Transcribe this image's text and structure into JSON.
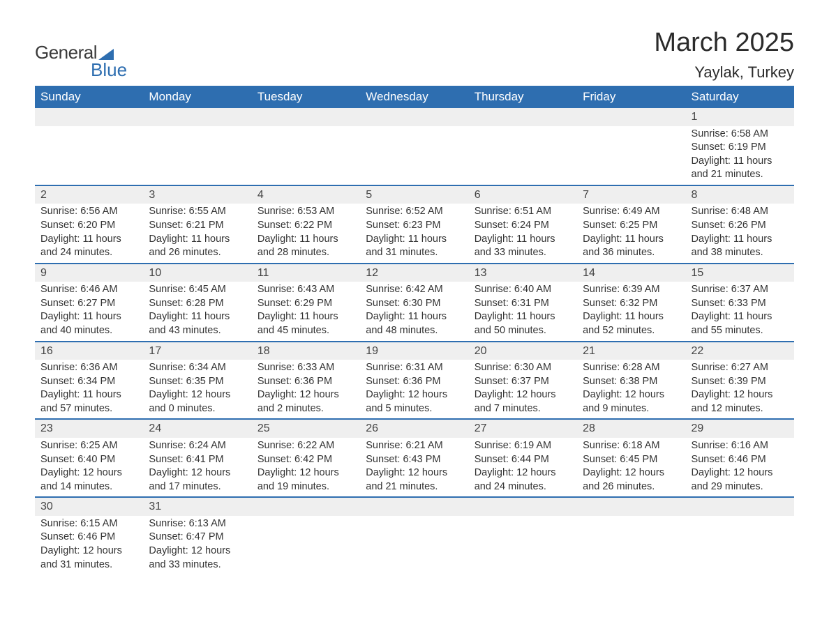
{
  "logo": {
    "text1": "General",
    "text2": "Blue"
  },
  "title": {
    "month": "March 2025",
    "location": "Yaylak, Turkey"
  },
  "colors": {
    "header_bg": "#2e6eb0",
    "header_text": "#ffffff",
    "daynum_bg": "#efefef",
    "row_border": "#2e6eb0",
    "body_text": "#333333",
    "page_bg": "#ffffff"
  },
  "weekdays": [
    "Sunday",
    "Monday",
    "Tuesday",
    "Wednesday",
    "Thursday",
    "Friday",
    "Saturday"
  ],
  "weeks": [
    [
      null,
      null,
      null,
      null,
      null,
      null,
      {
        "n": "1",
        "sr": "6:58 AM",
        "ss": "6:19 PM",
        "dl": "11 hours and 21 minutes."
      }
    ],
    [
      {
        "n": "2",
        "sr": "6:56 AM",
        "ss": "6:20 PM",
        "dl": "11 hours and 24 minutes."
      },
      {
        "n": "3",
        "sr": "6:55 AM",
        "ss": "6:21 PM",
        "dl": "11 hours and 26 minutes."
      },
      {
        "n": "4",
        "sr": "6:53 AM",
        "ss": "6:22 PM",
        "dl": "11 hours and 28 minutes."
      },
      {
        "n": "5",
        "sr": "6:52 AM",
        "ss": "6:23 PM",
        "dl": "11 hours and 31 minutes."
      },
      {
        "n": "6",
        "sr": "6:51 AM",
        "ss": "6:24 PM",
        "dl": "11 hours and 33 minutes."
      },
      {
        "n": "7",
        "sr": "6:49 AM",
        "ss": "6:25 PM",
        "dl": "11 hours and 36 minutes."
      },
      {
        "n": "8",
        "sr": "6:48 AM",
        "ss": "6:26 PM",
        "dl": "11 hours and 38 minutes."
      }
    ],
    [
      {
        "n": "9",
        "sr": "6:46 AM",
        "ss": "6:27 PM",
        "dl": "11 hours and 40 minutes."
      },
      {
        "n": "10",
        "sr": "6:45 AM",
        "ss": "6:28 PM",
        "dl": "11 hours and 43 minutes."
      },
      {
        "n": "11",
        "sr": "6:43 AM",
        "ss": "6:29 PM",
        "dl": "11 hours and 45 minutes."
      },
      {
        "n": "12",
        "sr": "6:42 AM",
        "ss": "6:30 PM",
        "dl": "11 hours and 48 minutes."
      },
      {
        "n": "13",
        "sr": "6:40 AM",
        "ss": "6:31 PM",
        "dl": "11 hours and 50 minutes."
      },
      {
        "n": "14",
        "sr": "6:39 AM",
        "ss": "6:32 PM",
        "dl": "11 hours and 52 minutes."
      },
      {
        "n": "15",
        "sr": "6:37 AM",
        "ss": "6:33 PM",
        "dl": "11 hours and 55 minutes."
      }
    ],
    [
      {
        "n": "16",
        "sr": "6:36 AM",
        "ss": "6:34 PM",
        "dl": "11 hours and 57 minutes."
      },
      {
        "n": "17",
        "sr": "6:34 AM",
        "ss": "6:35 PM",
        "dl": "12 hours and 0 minutes."
      },
      {
        "n": "18",
        "sr": "6:33 AM",
        "ss": "6:36 PM",
        "dl": "12 hours and 2 minutes."
      },
      {
        "n": "19",
        "sr": "6:31 AM",
        "ss": "6:36 PM",
        "dl": "12 hours and 5 minutes."
      },
      {
        "n": "20",
        "sr": "6:30 AM",
        "ss": "6:37 PM",
        "dl": "12 hours and 7 minutes."
      },
      {
        "n": "21",
        "sr": "6:28 AM",
        "ss": "6:38 PM",
        "dl": "12 hours and 9 minutes."
      },
      {
        "n": "22",
        "sr": "6:27 AM",
        "ss": "6:39 PM",
        "dl": "12 hours and 12 minutes."
      }
    ],
    [
      {
        "n": "23",
        "sr": "6:25 AM",
        "ss": "6:40 PM",
        "dl": "12 hours and 14 minutes."
      },
      {
        "n": "24",
        "sr": "6:24 AM",
        "ss": "6:41 PM",
        "dl": "12 hours and 17 minutes."
      },
      {
        "n": "25",
        "sr": "6:22 AM",
        "ss": "6:42 PM",
        "dl": "12 hours and 19 minutes."
      },
      {
        "n": "26",
        "sr": "6:21 AM",
        "ss": "6:43 PM",
        "dl": "12 hours and 21 minutes."
      },
      {
        "n": "27",
        "sr": "6:19 AM",
        "ss": "6:44 PM",
        "dl": "12 hours and 24 minutes."
      },
      {
        "n": "28",
        "sr": "6:18 AM",
        "ss": "6:45 PM",
        "dl": "12 hours and 26 minutes."
      },
      {
        "n": "29",
        "sr": "6:16 AM",
        "ss": "6:46 PM",
        "dl": "12 hours and 29 minutes."
      }
    ],
    [
      {
        "n": "30",
        "sr": "6:15 AM",
        "ss": "6:46 PM",
        "dl": "12 hours and 31 minutes."
      },
      {
        "n": "31",
        "sr": "6:13 AM",
        "ss": "6:47 PM",
        "dl": "12 hours and 33 minutes."
      },
      null,
      null,
      null,
      null,
      null
    ]
  ],
  "labels": {
    "sunrise": "Sunrise: ",
    "sunset": "Sunset: ",
    "daylight": "Daylight: "
  }
}
